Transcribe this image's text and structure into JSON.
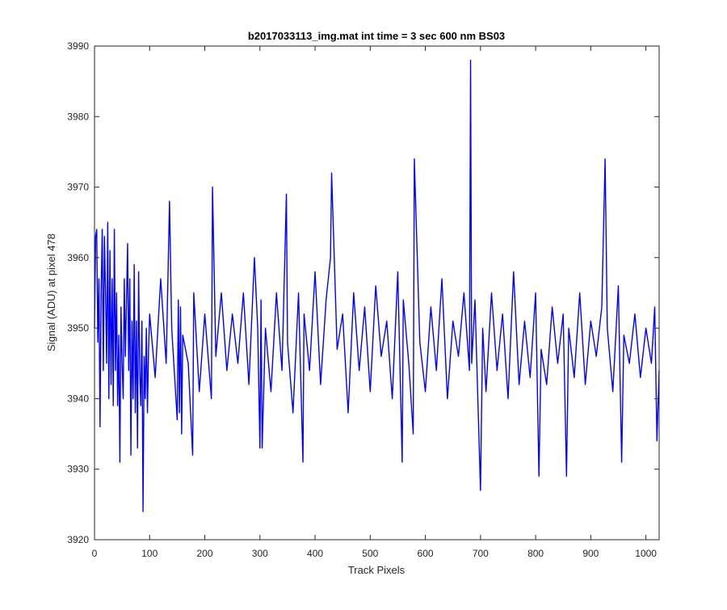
{
  "chart_data": {
    "type": "line",
    "title": "b2017033113_img.mat int time = 3 sec  600 nm BS03",
    "xlabel": "Track Pixels",
    "ylabel": "Signal (ADU) at pixel 478",
    "xlim": [
      0,
      1024
    ],
    "ylim": [
      3920,
      3990
    ],
    "xticks": [
      0,
      100,
      200,
      300,
      400,
      500,
      600,
      700,
      800,
      900,
      1000
    ],
    "yticks": [
      3920,
      3930,
      3940,
      3950,
      3960,
      3970,
      3980,
      3990
    ],
    "xtick_labels": [
      "0",
      "100",
      "200",
      "300",
      "400",
      "500",
      "600",
      "700",
      "800",
      "900",
      "1000"
    ],
    "ytick_labels": [
      "3920",
      "3930",
      "3940",
      "3950",
      "3960",
      "3970",
      "3980",
      "3990"
    ],
    "grid": false,
    "series": [
      {
        "color": "#0000ff",
        "x": [
          0,
          2,
          4,
          6,
          8,
          10,
          12,
          14,
          16,
          18,
          20,
          22,
          24,
          26,
          28,
          30,
          32,
          34,
          36,
          38,
          40,
          42,
          44,
          46,
          48,
          50,
          52,
          54,
          56,
          58,
          60,
          62,
          64,
          66,
          68,
          70,
          72,
          74,
          76,
          78,
          80,
          82,
          84,
          86,
          88,
          90,
          92,
          94,
          96,
          98,
          100,
          110,
          120,
          130,
          136,
          140,
          150,
          152,
          154,
          156,
          158,
          160,
          170,
          178,
          180,
          190,
          200,
          212,
          214,
          220,
          230,
          240,
          250,
          260,
          270,
          280,
          290,
          296,
          300,
          302,
          304,
          310,
          320,
          330,
          340,
          348,
          350,
          360,
          370,
          378,
          380,
          390,
          400,
          410,
          420,
          428,
          430,
          440,
          450,
          460,
          470,
          480,
          490,
          500,
          510,
          520,
          530,
          540,
          550,
          558,
          560,
          570,
          578,
          580,
          590,
          600,
          610,
          620,
          630,
          640,
          650,
          660,
          670,
          680,
          682,
          684,
          690,
          700,
          704,
          710,
          720,
          730,
          740,
          750,
          760,
          770,
          780,
          790,
          800,
          806,
          810,
          820,
          830,
          840,
          850,
          856,
          860,
          870,
          880,
          890,
          900,
          910,
          920,
          926,
          930,
          940,
          950,
          956,
          960,
          970,
          980,
          990,
          1000,
          1010,
          1016,
          1020,
          1024
        ],
        "y": [
          3950,
          3963,
          3964,
          3948,
          3957,
          3936,
          3955,
          3964,
          3944,
          3963,
          3955,
          3945,
          3965,
          3940,
          3961,
          3942,
          3957,
          3939,
          3964,
          3944,
          3955,
          3939,
          3949,
          3931,
          3953,
          3945,
          3940,
          3957,
          3946,
          3954,
          3962,
          3944,
          3957,
          3932,
          3951,
          3940,
          3959,
          3938,
          3951,
          3933,
          3958,
          3944,
          3939,
          3951,
          3924,
          3946,
          3940,
          3950,
          3938,
          3947,
          3952,
          3943,
          3957,
          3945,
          3968,
          3950,
          3937,
          3954,
          3938,
          3953,
          3935,
          3949,
          3945,
          3932,
          3955,
          3941,
          3952,
          3940,
          3970,
          3946,
          3955,
          3944,
          3952,
          3945,
          3955,
          3942,
          3960,
          3950,
          3933,
          3954,
          3933,
          3950,
          3941,
          3955,
          3944,
          3969,
          3948,
          3938,
          3955,
          3931,
          3952,
          3944,
          3958,
          3942,
          3954,
          3960,
          3972,
          3947,
          3952,
          3938,
          3955,
          3944,
          3953,
          3941,
          3956,
          3946,
          3951,
          3940,
          3958,
          3931,
          3954,
          3945,
          3935,
          3974,
          3948,
          3941,
          3953,
          3944,
          3957,
          3940,
          3951,
          3946,
          3955,
          3944,
          3988,
          3945,
          3954,
          3927,
          3950,
          3941,
          3955,
          3944,
          3952,
          3940,
          3958,
          3942,
          3951,
          3943,
          3955,
          3929,
          3947,
          3942,
          3953,
          3945,
          3952,
          3929,
          3950,
          3943,
          3955,
          3942,
          3951,
          3946,
          3953,
          3974,
          3950,
          3941,
          3956,
          3931,
          3949,
          3945,
          3952,
          3943,
          3950,
          3945,
          3953,
          3934,
          3944
        ]
      }
    ]
  }
}
